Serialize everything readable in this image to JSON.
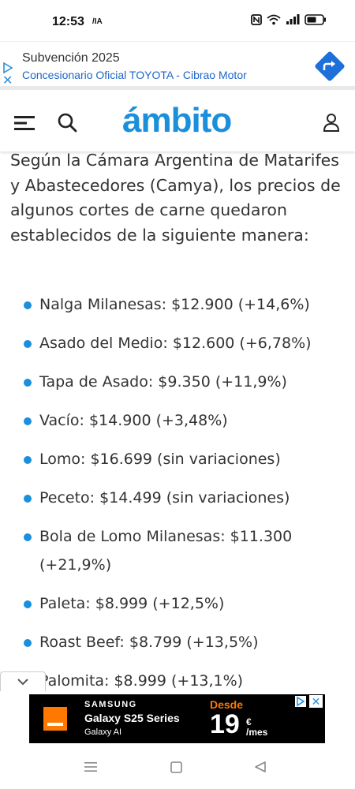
{
  "status_bar": {
    "time": "12:53",
    "carrier": "/IA"
  },
  "top_ad": {
    "title": "Subvención 2025",
    "subtitle": "Concesionario Oficial TOYOTA - Cibrao Motor",
    "close_symbol": "✕"
  },
  "header": {
    "logo": "ámbito"
  },
  "article": {
    "intro": "Según la Cámara Argentina de Matarifes y Abastecedores (Camya), los precios de algunos cortes de carne quedaron establecidos de la siguiente manera:",
    "items": [
      "Nalga Milanesas: $12.900 (+14,6%)",
      "Asado del Medio: $12.600 (+6,78%)",
      "Tapa de Asado: $9.350 (+11,9%)",
      "Vacío: $14.900 (+3,48%)",
      "Lomo: $16.699 (sin variaciones)",
      "Peceto: $14.499 (sin variaciones)",
      "Bola de Lomo Milanesas: $11.300 (+21,9%)",
      "Paleta: $8.999 (+12,5%)",
      "Roast Beef: $8.799 (+13,5%)",
      "Palomita: $8.999 (+13,1%)"
    ]
  },
  "bottom_ad": {
    "brand": "SAMSUNG",
    "model": "Galaxy S25 Series",
    "ai_label": "Galaxy AI",
    "from_label": "Desde",
    "price": "19",
    "currency": "€",
    "per": "/mes",
    "close_symbol": "✕"
  },
  "colors": {
    "accent": "#1a8fdc",
    "orange": "#ff7900"
  }
}
